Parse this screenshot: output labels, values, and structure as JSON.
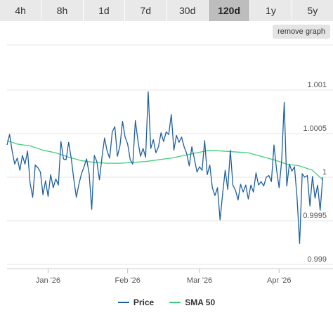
{
  "range_tabs": [
    {
      "label": "4h",
      "active": false
    },
    {
      "label": "8h",
      "active": false
    },
    {
      "label": "1d",
      "active": false
    },
    {
      "label": "7d",
      "active": false
    },
    {
      "label": "30d",
      "active": false
    },
    {
      "label": "120d",
      "active": true
    },
    {
      "label": "1y",
      "active": false
    },
    {
      "label": "5y",
      "active": false
    }
  ],
  "remove_graph_label": "remove graph",
  "chart_data": {
    "type": "line",
    "title": "",
    "xlabel": "",
    "ylabel": "",
    "ylim": [
      0.999,
      1.001
    ],
    "y_ticks": [
      {
        "value": 1.001,
        "label": "1.001"
      },
      {
        "value": 1.0005,
        "label": "1.0005"
      },
      {
        "value": 1.0,
        "label": "1"
      },
      {
        "value": 0.9995,
        "label": "0.9995"
      },
      {
        "value": 0.999,
        "label": "0.999"
      }
    ],
    "x_range": [
      "2025-12-16",
      "2026-04-22"
    ],
    "x_ticks": [
      {
        "date": "2026-01-01",
        "label": "Jan '26"
      },
      {
        "date": "2026-02-01",
        "label": "Feb '26"
      },
      {
        "date": "2026-03-01",
        "label": "Mar '26"
      },
      {
        "date": "2026-04-01",
        "label": "Apr '26"
      }
    ],
    "grid": true,
    "legend_position": "bottom",
    "series": [
      {
        "name": "Price",
        "color": "#1f5f9e",
        "points": [
          [
            "2025-12-16",
            1.00037
          ],
          [
            "2025-12-17",
            1.00049
          ],
          [
            "2025-12-18",
            1.0003
          ],
          [
            "2025-12-19",
            1.00015
          ],
          [
            "2025-12-20",
            1.00022
          ],
          [
            "2025-12-21",
            1.00008
          ],
          [
            "2025-12-22",
            1.00025
          ],
          [
            "2025-12-23",
            1.00015
          ],
          [
            "2025-12-24",
            1.0003
          ],
          [
            "2025-12-25",
            0.99993
          ],
          [
            "2025-12-26",
            0.99977
          ],
          [
            "2025-12-27",
            1.00014
          ],
          [
            "2025-12-28",
            1.00011
          ],
          [
            "2025-12-29",
            1.00006
          ],
          [
            "2025-12-30",
            0.9998
          ],
          [
            "2025-12-31",
            0.99996
          ],
          [
            "2026-01-01",
            0.99978
          ],
          [
            "2026-01-02",
            1.00003
          ],
          [
            "2026-01-03",
            0.99988
          ],
          [
            "2026-01-04",
            0.99998
          ],
          [
            "2026-01-05",
            0.99991
          ],
          [
            "2026-01-06",
            1.00041
          ],
          [
            "2026-01-07",
            1.00021
          ],
          [
            "2026-01-08",
            1.0002
          ],
          [
            "2026-01-09",
            1.0004
          ],
          [
            "2026-01-10",
            1.00022
          ],
          [
            "2026-01-11",
            0.99998
          ],
          [
            "2026-01-12",
            0.99977
          ],
          [
            "2026-01-13",
            0.99992
          ],
          [
            "2026-01-14",
            1.00004
          ],
          [
            "2026-01-15",
            1.00012
          ],
          [
            "2026-01-16",
            1.00021
          ],
          [
            "2026-01-17",
            1.00004
          ],
          [
            "2026-01-18",
            0.99963
          ],
          [
            "2026-01-19",
            1.00025
          ],
          [
            "2026-01-20",
            1.00018
          ],
          [
            "2026-01-21",
            0.99997
          ],
          [
            "2026-01-22",
            1.00023
          ],
          [
            "2026-01-23",
            1.00045
          ],
          [
            "2026-01-24",
            1.0003
          ],
          [
            "2026-01-25",
            1.00022
          ],
          [
            "2026-01-26",
            1.00052
          ],
          [
            "2026-01-27",
            1.00058
          ],
          [
            "2026-01-28",
            1.00024
          ],
          [
            "2026-01-29",
            1.00036
          ],
          [
            "2026-01-30",
            1.00064
          ],
          [
            "2026-01-31",
            1.00046
          ],
          [
            "2026-02-01",
            1.00038
          ],
          [
            "2026-02-02",
            1.0002
          ],
          [
            "2026-02-03",
            1.00015
          ],
          [
            "2026-02-04",
            1.00065
          ],
          [
            "2026-02-05",
            1.00042
          ],
          [
            "2026-02-06",
            1.00024
          ],
          [
            "2026-02-07",
            1.00033
          ],
          [
            "2026-02-08",
            1.00023
          ],
          [
            "2026-02-09",
            1.00098
          ],
          [
            "2026-02-10",
            1.00033
          ],
          [
            "2026-02-11",
            1.00043
          ],
          [
            "2026-02-12",
            1.00028
          ],
          [
            "2026-02-13",
            1.00035
          ],
          [
            "2026-02-14",
            1.00051
          ],
          [
            "2026-02-15",
            1.00041
          ],
          [
            "2026-02-16",
            1.00052
          ],
          [
            "2026-02-17",
            1.00049
          ],
          [
            "2026-02-18",
            1.00072
          ],
          [
            "2026-02-19",
            1.00031
          ],
          [
            "2026-02-20",
            1.00048
          ],
          [
            "2026-02-21",
            1.0004
          ],
          [
            "2026-02-22",
            1.00046
          ],
          [
            "2026-02-23",
            1.00035
          ],
          [
            "2026-02-24",
            1.00027
          ],
          [
            "2026-02-25",
            1.00013
          ],
          [
            "2026-02-26",
            1.00035
          ],
          [
            "2026-02-27",
            1.00021
          ],
          [
            "2026-02-28",
            1.00006
          ],
          [
            "2026-03-01",
            1.00012
          ],
          [
            "2026-03-02",
            1.00008
          ],
          [
            "2026-03-03",
            1.00042
          ],
          [
            "2026-03-04",
            1.00003
          ],
          [
            "2026-03-05",
            1.00014
          ],
          [
            "2026-03-06",
            0.99988
          ],
          [
            "2026-03-07",
            0.99979
          ],
          [
            "2026-03-08",
            0.99988
          ],
          [
            "2026-03-09",
            0.99951
          ],
          [
            "2026-03-10",
            0.99981
          ],
          [
            "2026-03-11",
            1.00008
          ],
          [
            "2026-03-12",
            0.99986
          ],
          [
            "2026-03-13",
            1.00031
          ],
          [
            "2026-03-14",
            0.99991
          ],
          [
            "2026-03-15",
            0.99985
          ],
          [
            "2026-03-16",
            0.99974
          ],
          [
            "2026-03-17",
            0.99992
          ],
          [
            "2026-03-18",
            0.99983
          ],
          [
            "2026-03-19",
            0.99991
          ],
          [
            "2026-03-20",
            0.99975
          ],
          [
            "2026-03-21",
            0.99991
          ],
          [
            "2026-03-22",
            0.99983
          ],
          [
            "2026-03-23",
            1.00005
          ],
          [
            "2026-03-24",
            0.99991
          ],
          [
            "2026-03-25",
            0.99995
          ],
          [
            "2026-03-26",
            0.9999
          ],
          [
            "2026-03-27",
            1.0
          ],
          [
            "2026-03-28",
            1.00002
          ],
          [
            "2026-03-29",
            0.99995
          ],
          [
            "2026-03-30",
            1.00037
          ],
          [
            "2026-03-31",
            1.00009
          ],
          [
            "2026-04-01",
            0.99988
          ],
          [
            "2026-04-02",
            1.00019
          ],
          [
            "2026-04-03",
            1.00086
          ],
          [
            "2026-04-04",
            0.9999
          ],
          [
            "2026-04-05",
            1.00015
          ],
          [
            "2026-04-06",
            1.00007
          ],
          [
            "2026-04-07",
            1.00012
          ],
          [
            "2026-04-08",
            0.99976
          ],
          [
            "2026-04-09",
            0.99924
          ],
          [
            "2026-04-10",
            1.00004
          ],
          [
            "2026-04-11",
            1.0
          ],
          [
            "2026-04-12",
            1.00002
          ],
          [
            "2026-04-13",
            0.99967
          ],
          [
            "2026-04-14",
            1.00001
          ],
          [
            "2026-04-15",
            0.99976
          ],
          [
            "2026-04-16",
            0.99991
          ],
          [
            "2026-04-17",
            0.99962
          ],
          [
            "2026-04-18",
            1.0
          ]
        ]
      },
      {
        "name": "SMA 50",
        "color": "#3fcf7a",
        "points": [
          [
            "2025-12-16",
            1.00042
          ],
          [
            "2025-12-20",
            1.00038
          ],
          [
            "2025-12-25",
            1.00036
          ],
          [
            "2025-12-30",
            1.00031
          ],
          [
            "2026-01-04",
            1.00028
          ],
          [
            "2026-01-09",
            1.00023
          ],
          [
            "2026-01-14",
            1.00019
          ],
          [
            "2026-01-19",
            1.00017
          ],
          [
            "2026-01-24",
            1.00016
          ],
          [
            "2026-01-29",
            1.00016
          ],
          [
            "2026-02-03",
            1.00017
          ],
          [
            "2026-02-08",
            1.00018
          ],
          [
            "2026-02-13",
            1.0002
          ],
          [
            "2026-02-18",
            1.00022
          ],
          [
            "2026-02-23",
            1.00025
          ],
          [
            "2026-02-28",
            1.00028
          ],
          [
            "2026-03-05",
            1.00031
          ],
          [
            "2026-03-10",
            1.0003
          ],
          [
            "2026-03-15",
            1.00029
          ],
          [
            "2026-03-20",
            1.00028
          ],
          [
            "2026-03-25",
            1.00024
          ],
          [
            "2026-03-30",
            1.0002
          ],
          [
            "2026-04-04",
            1.00015
          ],
          [
            "2026-04-09",
            1.00013
          ],
          [
            "2026-04-14",
            1.00008
          ],
          [
            "2026-04-18",
            0.99997
          ]
        ]
      }
    ]
  }
}
